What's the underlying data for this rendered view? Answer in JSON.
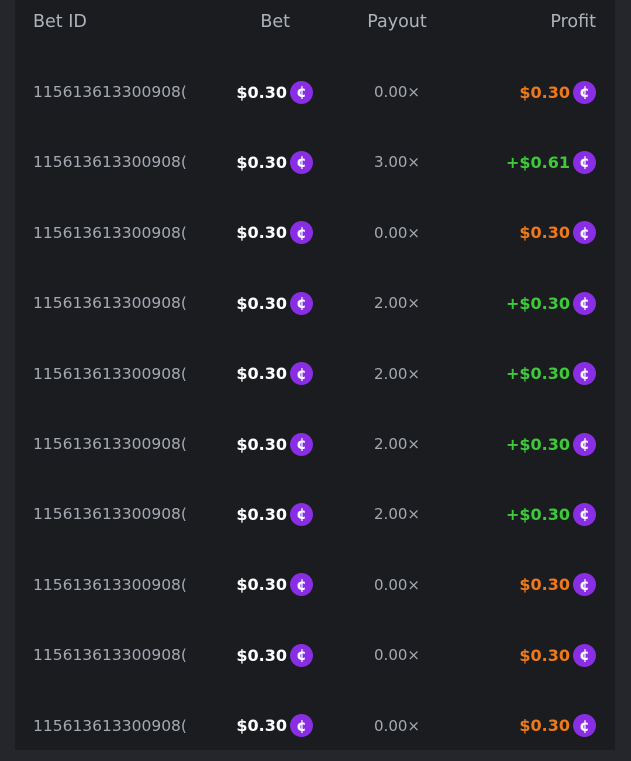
{
  "headers": {
    "bet_id": "Bet ID",
    "bet": "Bet",
    "payout": "Payout",
    "profit": "Profit"
  },
  "colors": {
    "loss": "#ec7a1c",
    "win": "#3dc93a",
    "coin": "#8a2ee6"
  },
  "coin_icon": "cent-coin-icon",
  "rows": [
    {
      "id": "115613613300908(",
      "bet": "$0.30",
      "payout": "0.00×",
      "profit": "$0.30",
      "result": "loss"
    },
    {
      "id": "115613613300908(",
      "bet": "$0.30",
      "payout": "3.00×",
      "profit": "+$0.61",
      "result": "win"
    },
    {
      "id": "115613613300908(",
      "bet": "$0.30",
      "payout": "0.00×",
      "profit": "$0.30",
      "result": "loss"
    },
    {
      "id": "115613613300908(",
      "bet": "$0.30",
      "payout": "2.00×",
      "profit": "+$0.30",
      "result": "win"
    },
    {
      "id": "115613613300908(",
      "bet": "$0.30",
      "payout": "2.00×",
      "profit": "+$0.30",
      "result": "win"
    },
    {
      "id": "115613613300908(",
      "bet": "$0.30",
      "payout": "2.00×",
      "profit": "+$0.30",
      "result": "win"
    },
    {
      "id": "115613613300908(",
      "bet": "$0.30",
      "payout": "2.00×",
      "profit": "+$0.30",
      "result": "win"
    },
    {
      "id": "115613613300908(",
      "bet": "$0.30",
      "payout": "0.00×",
      "profit": "$0.30",
      "result": "loss"
    },
    {
      "id": "115613613300908(",
      "bet": "$0.30",
      "payout": "0.00×",
      "profit": "$0.30",
      "result": "loss"
    },
    {
      "id": "115613613300908(",
      "bet": "$0.30",
      "payout": "0.00×",
      "profit": "$0.30",
      "result": "loss"
    }
  ]
}
